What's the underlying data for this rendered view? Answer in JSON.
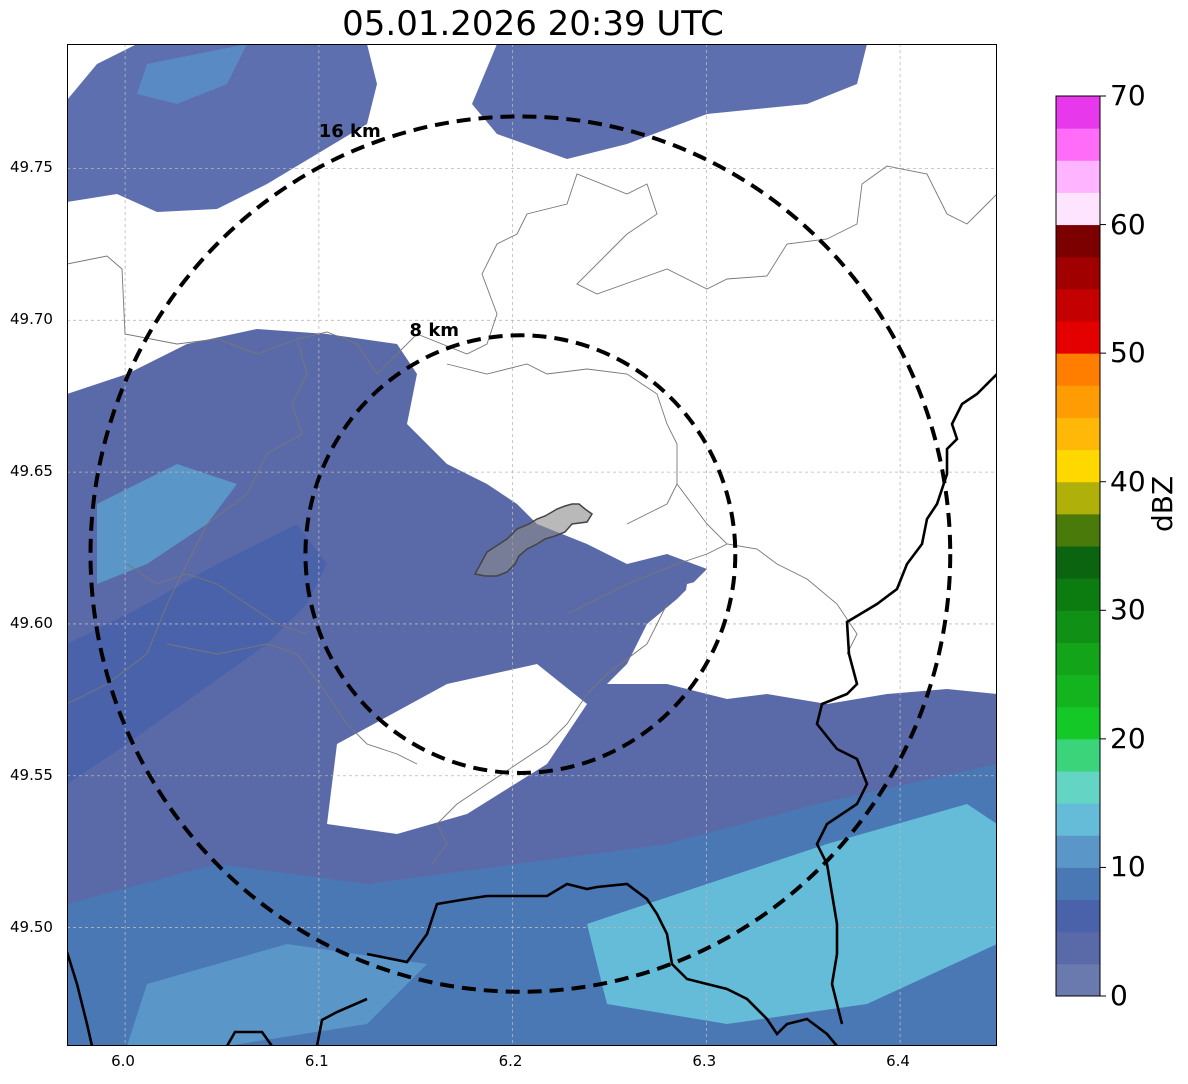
{
  "title": "05.01.2026 20:39 UTC",
  "x_ticks": [
    "6.0",
    "6.1",
    "6.2",
    "6.3",
    "6.4"
  ],
  "y_ticks": [
    "49.75",
    "49.70",
    "49.65",
    "49.60",
    "49.55",
    "49.50"
  ],
  "axis_range": {
    "lon": [
      5.97,
      6.45
    ],
    "lat": [
      49.461,
      49.791
    ]
  },
  "rings": [
    {
      "label": "8 km",
      "radius_km": 8
    },
    {
      "label": "16 km",
      "radius_km": 16
    }
  ],
  "radar_center": {
    "lon": 6.204,
    "lat": 49.623
  },
  "colorbar": {
    "label": "dBZ",
    "range": [
      0,
      70
    ],
    "ticks": [
      "0",
      "10",
      "20",
      "30",
      "40",
      "50",
      "60",
      "70"
    ],
    "colors": [
      "#6a7aaf",
      "#5a6aa8",
      "#4a62aa",
      "#4a78b4",
      "#5a96c8",
      "#64bcd8",
      "#64d4c4",
      "#3cd47a",
      "#14c828",
      "#14b41e",
      "#14a41a",
      "#109014",
      "#0c7c10",
      "#0a6410",
      "#4a7a0a",
      "#b0b00a",
      "#ffd800",
      "#ffb808",
      "#ff9c04",
      "#ff7e00",
      "#e40000",
      "#c40000",
      "#a00000",
      "#7c0000",
      "#ffe4ff",
      "#ffb4ff",
      "#ff6cf8",
      "#e838ec"
    ]
  },
  "grid": true
}
